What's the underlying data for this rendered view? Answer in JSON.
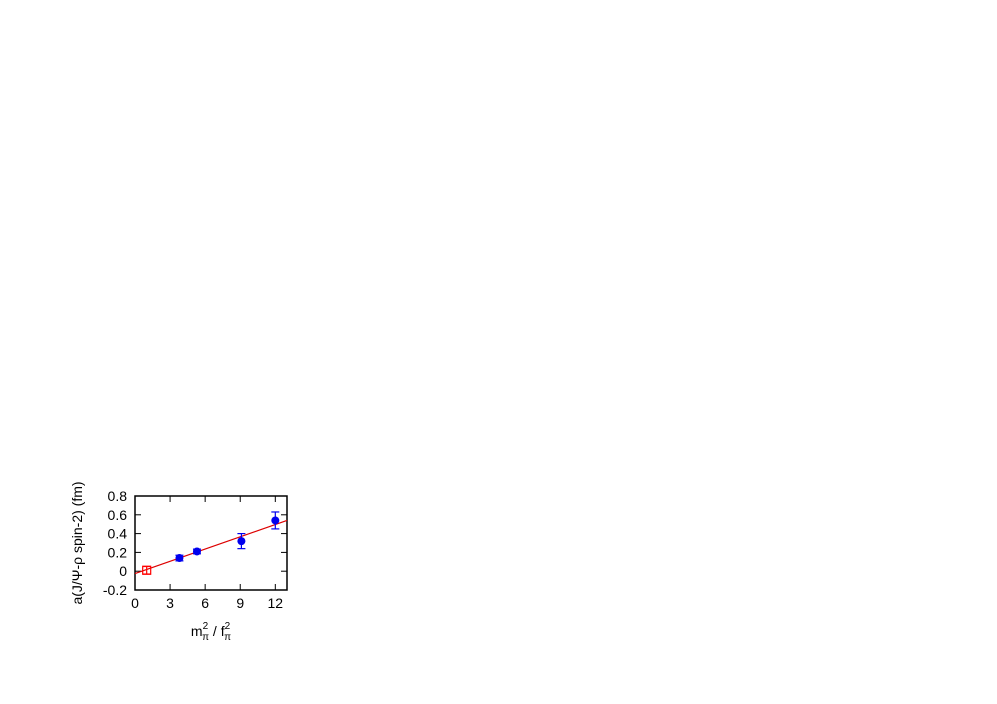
{
  "chart_data": {
    "type": "scatter",
    "title": "",
    "xlabel": {
      "base1": "m",
      "sup1": "2",
      "sub1": "π",
      "sep": " / ",
      "base2": "f",
      "sup2": "2",
      "sub2": "π"
    },
    "ylabel": "a(J/Ψ-ρ spin-2) (fm)",
    "xlim": [
      0,
      13
    ],
    "ylim": [
      -0.2,
      0.8
    ],
    "xticks": [
      0,
      3,
      6,
      9,
      12
    ],
    "xtick_labels": [
      "0",
      "3",
      "6",
      "9",
      "12"
    ],
    "yticks": [
      -0.2,
      0,
      0.2,
      0.4,
      0.6,
      0.8
    ],
    "ytick_labels": [
      "-0.2",
      "0",
      "0.2",
      "0.4",
      "0.6",
      "0.8"
    ],
    "grid": false,
    "series": [
      {
        "marker": "filled-circle",
        "color": "#0000ee",
        "points": [
          {
            "x": 3.8,
            "y": 0.14,
            "err": 0.03
          },
          {
            "x": 5.3,
            "y": 0.21,
            "err": 0.025
          },
          {
            "x": 9.1,
            "y": 0.32,
            "err": 0.08
          },
          {
            "x": 12.0,
            "y": 0.54,
            "err": 0.09
          }
        ]
      },
      {
        "marker": "open-square",
        "color": "#ff0000",
        "points": [
          {
            "x": 1.0,
            "y": 0.01,
            "err": 0.04
          }
        ]
      }
    ],
    "fit_line": {
      "color": "#dd0000",
      "x": [
        0,
        13
      ],
      "y": [
        -0.025,
        0.54
      ]
    }
  }
}
